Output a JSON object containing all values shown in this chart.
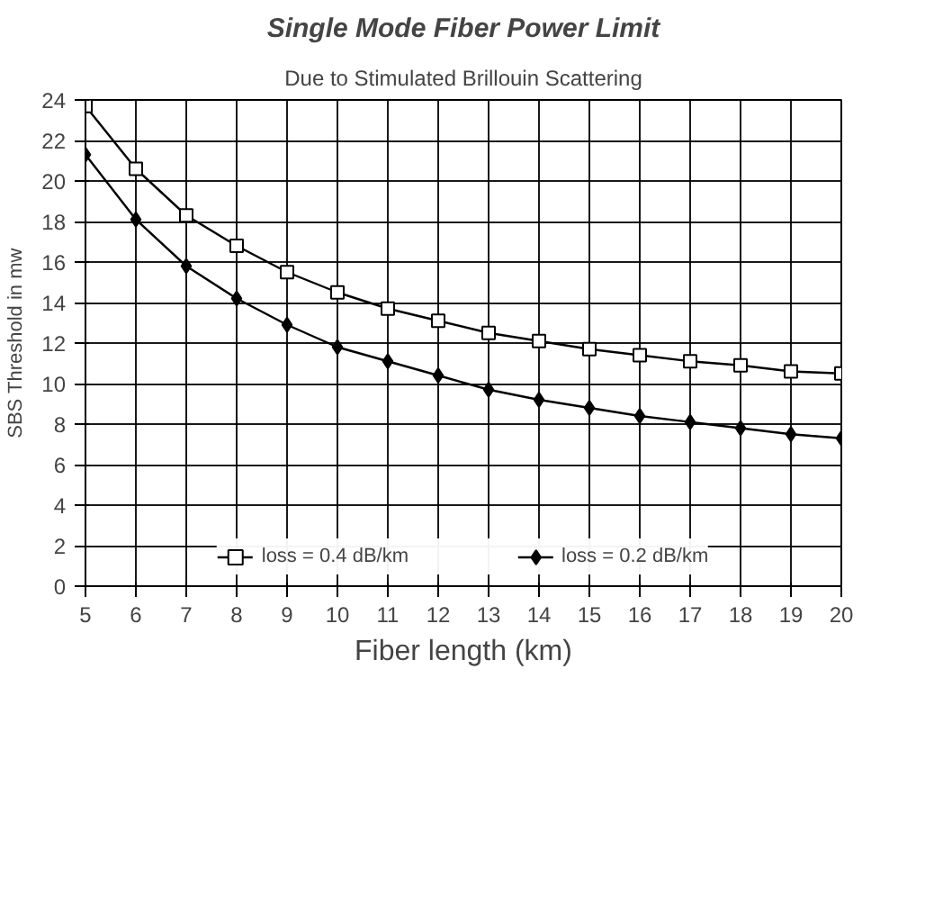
{
  "chart_data": {
    "type": "line",
    "title": "Single Mode Fiber Power Limit",
    "subtitle": "Due to Stimulated Brillouin Scattering",
    "xlabel": "Fiber length (km)",
    "ylabel": "SBS Threshold in mw",
    "x": [
      5,
      6,
      7,
      8,
      9,
      10,
      11,
      12,
      13,
      14,
      15,
      16,
      17,
      18,
      19,
      20
    ],
    "series": [
      {
        "name": "loss = 0.4 dB/km",
        "color": "#000000",
        "marker": "square",
        "values": [
          23.7,
          20.6,
          18.3,
          16.8,
          15.5,
          14.5,
          13.7,
          13.1,
          12.5,
          12.1,
          11.7,
          11.4,
          11.1,
          10.9,
          10.6,
          10.5
        ]
      },
      {
        "name": "loss = 0.2 dB/km",
        "color": "#000000",
        "marker": "diamond",
        "values": [
          21.3,
          18.1,
          15.8,
          14.2,
          12.9,
          11.8,
          11.1,
          10.4,
          9.7,
          9.2,
          8.8,
          8.4,
          8.1,
          7.8,
          7.5,
          7.3
        ]
      }
    ],
    "xlim": [
      5,
      20
    ],
    "ylim": [
      0,
      24
    ],
    "xticks": [
      5,
      6,
      7,
      8,
      9,
      10,
      11,
      12,
      13,
      14,
      15,
      16,
      17,
      18,
      19,
      20
    ],
    "yticks": [
      0,
      2,
      4,
      6,
      8,
      10,
      12,
      14,
      16,
      18,
      20,
      22,
      24
    ],
    "grid": true,
    "legend": "bottom",
    "line_style": "solid"
  }
}
